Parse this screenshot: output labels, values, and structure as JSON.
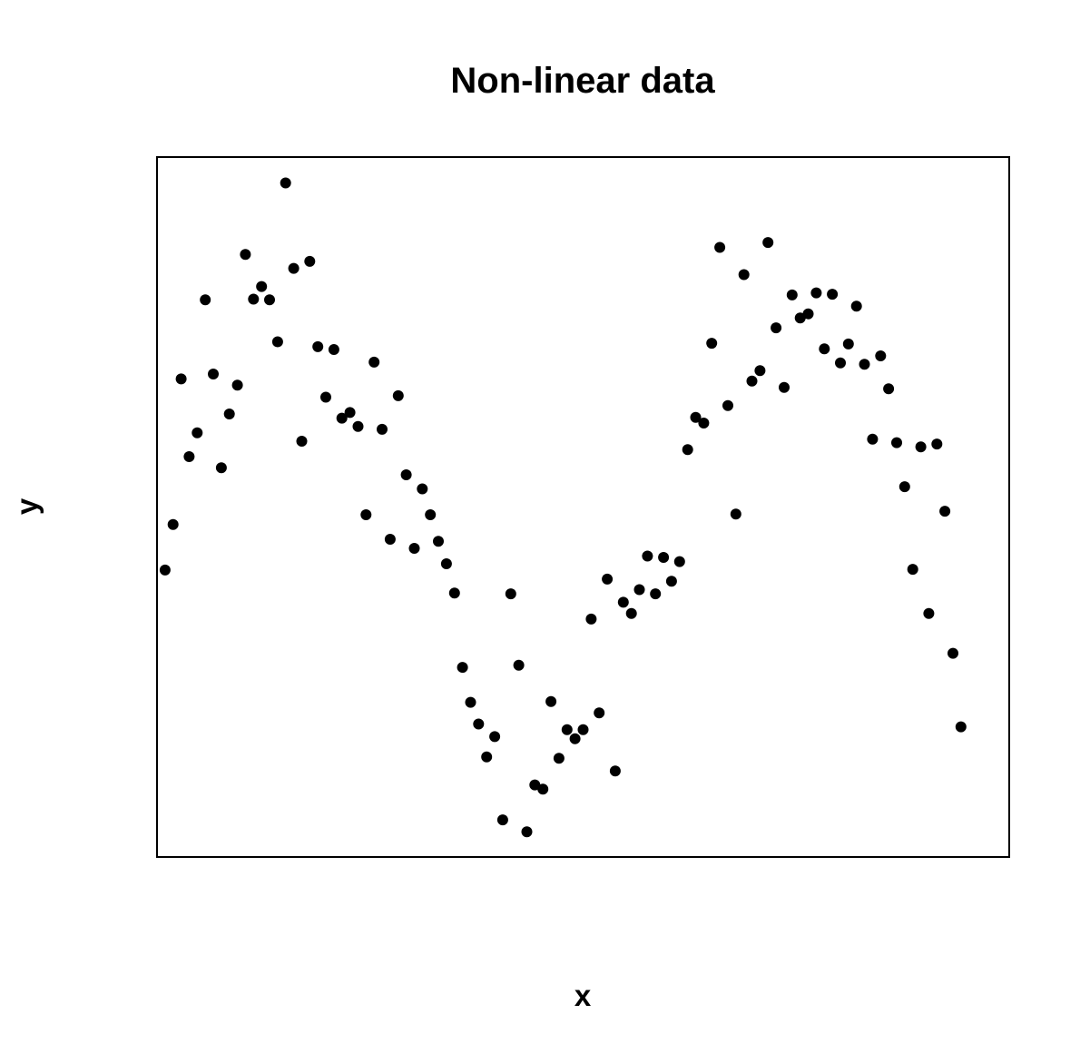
{
  "chart_data": {
    "type": "scatter",
    "title": "Non-linear data",
    "xlabel": "x",
    "ylabel": "y",
    "xlim": [
      0,
      106
    ],
    "ylim": [
      0,
      100
    ],
    "grid": false,
    "axes_ticks": false,
    "point_color": "#000000",
    "points": [
      [
        1,
        41
      ],
      [
        2,
        47.5
      ],
      [
        3,
        68.3
      ],
      [
        4,
        57.2
      ],
      [
        5,
        60.6
      ],
      [
        6,
        79.6
      ],
      [
        7,
        69
      ],
      [
        8,
        55.6
      ],
      [
        9,
        63.3
      ],
      [
        10,
        67.4
      ],
      [
        11,
        86.1
      ],
      [
        12,
        79.7
      ],
      [
        13,
        81.5
      ],
      [
        14,
        79.6
      ],
      [
        15,
        73.6
      ],
      [
        16,
        96.3
      ],
      [
        17,
        84.1
      ],
      [
        18,
        59.4
      ],
      [
        19,
        85.1
      ],
      [
        20,
        72.9
      ],
      [
        21,
        65.7
      ],
      [
        22,
        72.5
      ],
      [
        23,
        62.7
      ],
      [
        24,
        63.5
      ],
      [
        25,
        61.5
      ],
      [
        26,
        48.9
      ],
      [
        27,
        70.7
      ],
      [
        28,
        61.1
      ],
      [
        29,
        45.4
      ],
      [
        30,
        65.9
      ],
      [
        31,
        54.6
      ],
      [
        32,
        44.1
      ],
      [
        33,
        52.6
      ],
      [
        34,
        48.9
      ],
      [
        35,
        45.1
      ],
      [
        36,
        41.9
      ],
      [
        37,
        37.7
      ],
      [
        38,
        27.1
      ],
      [
        39,
        22.1
      ],
      [
        40,
        19
      ],
      [
        41,
        14.3
      ],
      [
        42,
        17.2
      ],
      [
        43,
        5.3
      ],
      [
        44,
        37.6
      ],
      [
        45,
        27.4
      ],
      [
        46,
        3.6
      ],
      [
        47,
        10.3
      ],
      [
        48,
        9.7
      ],
      [
        49,
        22.2
      ],
      [
        50,
        14.1
      ],
      [
        51,
        18.2
      ],
      [
        52,
        16.9
      ],
      [
        53,
        18.2
      ],
      [
        54,
        34
      ],
      [
        55,
        20.6
      ],
      [
        56,
        39.7
      ],
      [
        57,
        12.3
      ],
      [
        58,
        36.4
      ],
      [
        59,
        34.8
      ],
      [
        60,
        38.2
      ],
      [
        61,
        43
      ],
      [
        62,
        37.6
      ],
      [
        63,
        42.8
      ],
      [
        64,
        39.4
      ],
      [
        65,
        42.2
      ],
      [
        66,
        58.2
      ],
      [
        67,
        62.8
      ],
      [
        68,
        62
      ],
      [
        69,
        73.4
      ],
      [
        70,
        87.1
      ],
      [
        71,
        64.5
      ],
      [
        72,
        49
      ],
      [
        73,
        83.2
      ],
      [
        74,
        68
      ],
      [
        75,
        69.5
      ],
      [
        76,
        87.8
      ],
      [
        77,
        75.6
      ],
      [
        78,
        67.1
      ],
      [
        79,
        80.3
      ],
      [
        80,
        77
      ],
      [
        81,
        77.6
      ],
      [
        82,
        80.6
      ],
      [
        83,
        72.6
      ],
      [
        84,
        80.4
      ],
      [
        85,
        70.6
      ],
      [
        86,
        73.3
      ],
      [
        87,
        78.7
      ],
      [
        88,
        70.4
      ],
      [
        89,
        59.7
      ],
      [
        90,
        71.6
      ],
      [
        91,
        66.9
      ],
      [
        92,
        59.2
      ],
      [
        93,
        52.9
      ],
      [
        94,
        41.1
      ],
      [
        95,
        58.6
      ],
      [
        96,
        34.8
      ],
      [
        97,
        59
      ],
      [
        98,
        49.4
      ],
      [
        99,
        29.1
      ],
      [
        100,
        18.6
      ]
    ]
  }
}
